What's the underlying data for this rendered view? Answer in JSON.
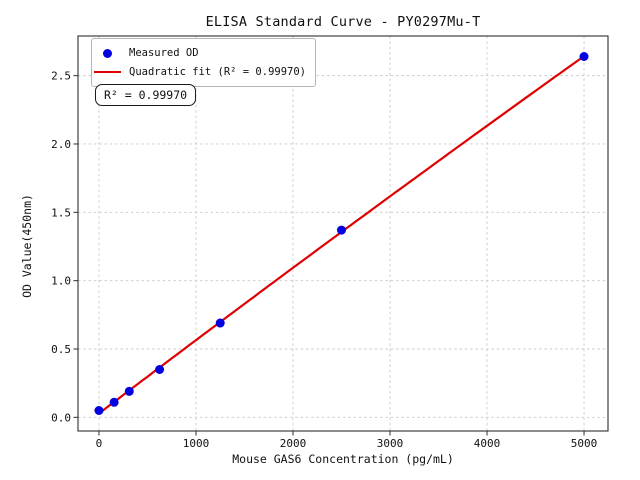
{
  "figure": {
    "title": "ELISA Standard Curve - PY0297Mu-T",
    "xlabel": "Mouse GAS6 Concentration (pg/mL)",
    "ylabel": "OD Value(450nm)",
    "annotation": "R² = 0.99970",
    "legend": {
      "measured_label": "Measured OD",
      "fit_label": "Quadratic fit (R² = 0.99970)"
    },
    "colors": {
      "marker": "#0000e0",
      "fit_line": "#e00000",
      "grid": "#c9c9c9",
      "axis": "#2e2e2e",
      "tick_text": "#111111",
      "background": "#ffffff"
    }
  },
  "chart_data": {
    "type": "scatter",
    "title": "ELISA Standard Curve - PY0297Mu-T",
    "xlabel": "Mouse GAS6 Concentration (pg/mL)",
    "ylabel": "OD Value(450nm)",
    "series": [
      {
        "name": "Measured OD",
        "type": "scatter",
        "x": [
          0,
          156.25,
          312.5,
          625,
          1250,
          2500,
          5000
        ],
        "y": [
          0.05,
          0.11,
          0.19,
          0.35,
          0.69,
          1.37,
          2.64
        ]
      },
      {
        "name": "Quadratic fit (R² = 0.99970)",
        "type": "line",
        "fit": "quadratic",
        "r_squared": 0.9997
      }
    ],
    "xticks": [
      0,
      1000,
      2000,
      3000,
      4000,
      5000
    ],
    "yticks": [
      0,
      0.5,
      1,
      1.5,
      2,
      2.5
    ],
    "ytick_labels": [
      "0.0",
      "0.5",
      "1.0",
      "1.5",
      "2.0",
      "2.5"
    ],
    "xlim": [
      -216,
      5247
    ],
    "ylim": [
      -0.1,
      2.79
    ],
    "grid": true,
    "legend_position": "upper left",
    "annotation": "R² = 0.99970"
  }
}
